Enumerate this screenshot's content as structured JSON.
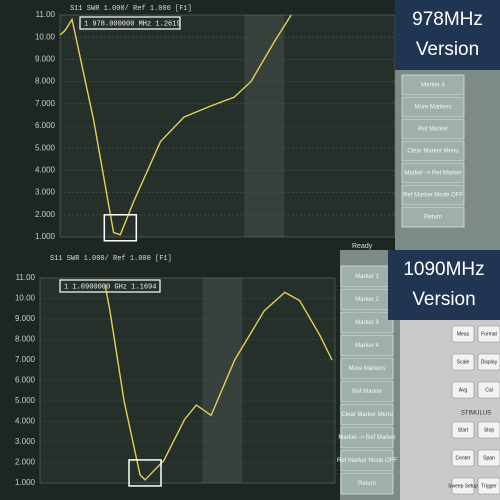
{
  "chart_data": [
    {
      "type": "line",
      "title": "S11 SWR 1.000/ Ref 1.000 [F1]",
      "marker_readout": "1  978.000000 MHz  1.2619",
      "badge": [
        "978MHz",
        "Version"
      ],
      "status": "Ready",
      "menu": [
        "Marker 4",
        "More Markers",
        "Ref Marker",
        "Clear Marker Menu",
        "Marker -> Ref Marker",
        "Ref Marker Mode OFF",
        "Return"
      ],
      "x": [
        0,
        1.5,
        3.6,
        10,
        16,
        18,
        22,
        30,
        37,
        45,
        52,
        57,
        64,
        69
      ],
      "values": [
        10.1,
        10.3,
        10.8,
        6.3,
        1.2,
        1.1,
        2.6,
        5.3,
        6.4,
        6.9,
        7.3,
        8,
        9.8,
        11
      ],
      "color": "#e3cf5a",
      "xlim": [
        0,
        100
      ],
      "ylim": [
        1,
        11
      ],
      "yticks": [
        {
          "value": 1,
          "label": "1.000"
        },
        {
          "value": 2,
          "label": "2.000"
        },
        {
          "value": 3,
          "label": "3.000"
        },
        {
          "value": 4,
          "label": "4.000"
        },
        {
          "value": 5,
          "label": "5.000"
        },
        {
          "value": 6,
          "label": "6.000"
        },
        {
          "value": 7,
          "label": "7.000"
        },
        {
          "value": 8,
          "label": "8.000"
        },
        {
          "value": 9,
          "label": "9.000"
        },
        {
          "value": 10,
          "label": "10.00"
        },
        {
          "value": 11,
          "label": "11.00"
        }
      ],
      "grid": true
    },
    {
      "type": "line",
      "title": "S11 SWR 1.000/ Ref 1.000 [F1]",
      "marker_readout": "1  1.0900000 GHz  1.1694",
      "badge": [
        "1090MHz",
        "Version"
      ],
      "menu": [
        "Marker 1",
        "Marker 2",
        "Marker 3",
        "Marker 4",
        "More Markers",
        "Ref Marker",
        "Clear Marker Menu",
        "Marker -> Ref Marker",
        "Ref Marker Mode OFF",
        "Return"
      ],
      "keys": [
        "Meas",
        "Format",
        "Scale",
        "Display",
        "Avg",
        "Cal",
        "Start",
        "Stop",
        "Center",
        "Span",
        "Sweep Setup",
        "Trigger"
      ],
      "keys_group": "STIMULUS",
      "x": [
        22,
        23.7,
        28.5,
        33.9,
        35.6,
        42,
        49,
        53,
        58,
        66,
        76,
        83,
        88,
        94.9,
        99
      ],
      "values": [
        10.7,
        9.4,
        5,
        1.4,
        1.15,
        2.1,
        4.1,
        4.8,
        4.3,
        7,
        9.4,
        10.3,
        9.9,
        8.2,
        7
      ],
      "color": "#e3cf5a",
      "xlim": [
        0,
        100
      ],
      "ylim": [
        1,
        11
      ],
      "yticks": [
        {
          "value": 1,
          "label": "1.000"
        },
        {
          "value": 2,
          "label": "2.000"
        },
        {
          "value": 3,
          "label": "3.000"
        },
        {
          "value": 4,
          "label": "4.000"
        },
        {
          "value": 5,
          "label": "5.000"
        },
        {
          "value": 6,
          "label": "6.000"
        },
        {
          "value": 7,
          "label": "7.000"
        },
        {
          "value": 8,
          "label": "8.000"
        },
        {
          "value": 9,
          "label": "9.000"
        },
        {
          "value": 10,
          "label": "10.00"
        },
        {
          "value": 11,
          "label": "11.00"
        }
      ],
      "grid": true
    }
  ]
}
